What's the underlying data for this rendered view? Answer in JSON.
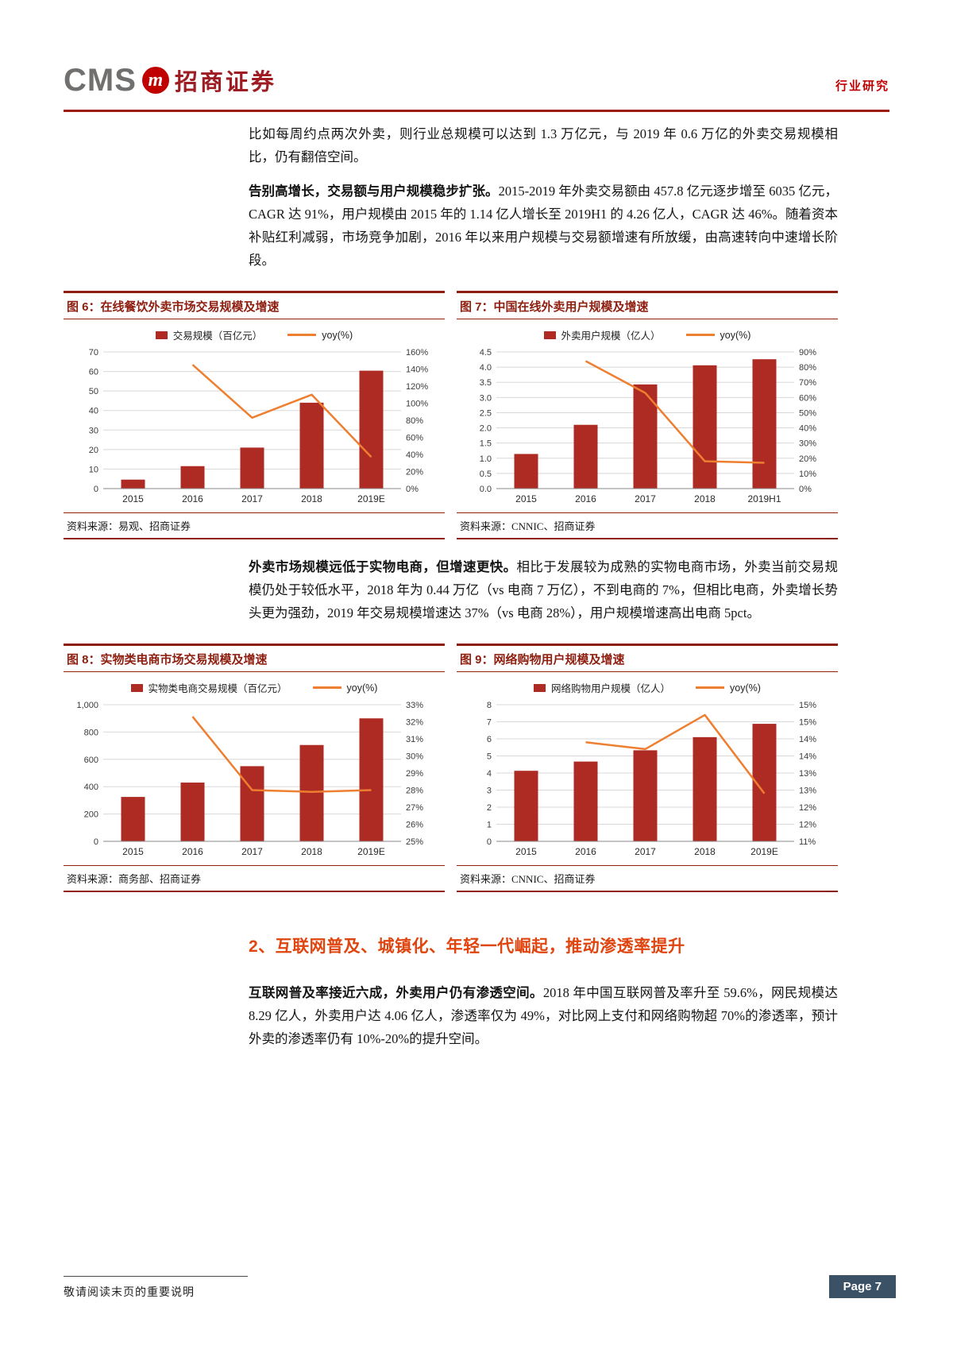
{
  "header": {
    "brand_cms": "CMS",
    "brand_m": "m",
    "brand_name": "招商证券",
    "section_label": "行业研究"
  },
  "paragraphs": {
    "p1": "比如每周约点两次外卖，则行业总规模可以达到 1.3 万亿元，与 2019 年 0.6 万亿的外卖交易规模相比，仍有翻倍空间。",
    "p2_lead": "告别高增长，交易额与用户规模稳步扩张。",
    "p2_rest": "2015-2019 年外卖交易额由 457.8 亿元逐步增至 6035 亿元，CAGR 达 91%，用户规模由 2015 年的 1.14 亿人增长至 2019H1 的 4.26 亿人，CAGR 达 46%。随着资本补贴红利减弱，市场竞争加剧，2016 年以来用户规模与交易额增速有所放缓，由高速转向中速增长阶段。",
    "p3_lead": "外卖市场规模远低于实物电商，但增速更快。",
    "p3_rest": "相比于发展较为成熟的实物电商市场，外卖当前交易规模仍处于较低水平，2018 年为 0.44 万亿（vs 电商 7 万亿），不到电商的 7%，但相比电商，外卖增长势头更为强劲，2019 年交易规模增速达 37%（vs 电商 28%），用户规模增速高出电商 5pct。",
    "p4_lead": "互联网普及率接近六成，外卖用户仍有渗透空间。",
    "p4_rest": "2018 年中国互联网普及率升至 59.6%，网民规模达 8.29 亿人，外卖用户达 4.06 亿人，渗透率仅为 49%，对比网上支付和网络购物超 70%的渗透率，预计外卖的渗透率仍有 10%-20%的提升空间。"
  },
  "section_heading": "2、互联网普及、城镇化、年轻一代崛起，推动渗透率提升",
  "footer": {
    "note": "敬请阅读末页的重要说明",
    "page_label": "Page 7"
  },
  "colors": {
    "bar": "#AE2B24",
    "line": "#EE7E30",
    "line_red": "#8E1F10",
    "rule_red": "#9E1C16",
    "accent_red": "#C00000",
    "brand_red": "#9D1D22",
    "brand_gray": "#71706E",
    "heading_orange": "#E0450F",
    "badge_bg": "#3A5166"
  },
  "chart_data": "see charts",
  "charts": [
    {
      "fig_label": "图 6：在线餐饮外卖市场交易规模及增速",
      "type": "bar+line",
      "categories": [
        "2015",
        "2016",
        "2017",
        "2018",
        "2019E"
      ],
      "series": [
        {
          "name": "交易规模（百亿元）",
          "type": "bar",
          "axis": "left",
          "values": [
            4.6,
            11.5,
            21,
            44,
            60.4
          ]
        },
        {
          "name": "yoy(%)",
          "type": "line",
          "axis": "right",
          "values": [
            null,
            145,
            83,
            110,
            37
          ]
        }
      ],
      "left_axis": {
        "min": 0,
        "max": 70,
        "tick_values": [
          0,
          10,
          20,
          30,
          40,
          50,
          60,
          70
        ],
        "tick_labels": [
          "0",
          "10",
          "20",
          "30",
          "40",
          "50",
          "60",
          "70"
        ]
      },
      "right_axis": {
        "min": 0,
        "max": 160,
        "tick_values": [
          0,
          20,
          40,
          60,
          80,
          100,
          120,
          140,
          160
        ],
        "tick_labels": [
          "0%",
          "20%",
          "40%",
          "60%",
          "80%",
          "100%",
          "120%",
          "140%",
          "160%"
        ]
      },
      "source": "资料来源：易观、招商证券"
    },
    {
      "fig_label": "图 7：中国在线外卖用户规模及增速",
      "type": "bar+line",
      "categories": [
        "2015",
        "2016",
        "2017",
        "2018",
        "2019H1"
      ],
      "series": [
        {
          "name": "外卖用户规模（亿人）",
          "type": "bar",
          "axis": "left",
          "values": [
            1.14,
            2.1,
            3.43,
            4.06,
            4.26
          ]
        },
        {
          "name": "yoy(%)",
          "type": "line",
          "axis": "right",
          "values": [
            null,
            84,
            63,
            18,
            17
          ]
        }
      ],
      "left_axis": {
        "min": 0,
        "max": 4.5,
        "tick_values": [
          0,
          0.5,
          1,
          1.5,
          2,
          2.5,
          3,
          3.5,
          4,
          4.5
        ],
        "tick_labels": [
          "0.0",
          "0.5",
          "1.0",
          "1.5",
          "2.0",
          "2.5",
          "3.0",
          "3.5",
          "4.0",
          "4.5"
        ]
      },
      "right_axis": {
        "min": 0,
        "max": 90,
        "tick_values": [
          0,
          10,
          20,
          30,
          40,
          50,
          60,
          70,
          80,
          90
        ],
        "tick_labels": [
          "0%",
          "10%",
          "20%",
          "30%",
          "40%",
          "50%",
          "60%",
          "70%",
          "80%",
          "90%"
        ]
      },
      "source": "资料来源：CNNIC、招商证券"
    },
    {
      "fig_label": "图 8：实物类电商市场交易规模及增速",
      "type": "bar+line",
      "categories": [
        "2015",
        "2016",
        "2017",
        "2018",
        "2019E"
      ],
      "series": [
        {
          "name": "实物类电商交易规模（百亿元）",
          "type": "bar",
          "axis": "left",
          "values": [
            325,
            430,
            550,
            705,
            900
          ]
        },
        {
          "name": "yoy(%)",
          "type": "line",
          "axis": "right",
          "values": [
            null,
            32.3,
            28,
            27.9,
            28
          ]
        }
      ],
      "left_axis": {
        "min": 0,
        "max": 1000,
        "tick_values": [
          0,
          200,
          400,
          600,
          800,
          1000
        ],
        "tick_labels": [
          "0",
          "200",
          "400",
          "600",
          "800",
          "1,000"
        ]
      },
      "right_axis": {
        "min": 25,
        "max": 33,
        "tick_values": [
          25,
          26,
          27,
          28,
          29,
          30,
          31,
          32,
          33
        ],
        "tick_labels": [
          "25%",
          "26%",
          "27%",
          "28%",
          "29%",
          "30%",
          "31%",
          "32%",
          "33%"
        ]
      },
      "source": "资料来源：商务部、招商证券"
    },
    {
      "fig_label": "图 9：网络购物用户规模及增速",
      "type": "bar+line",
      "categories": [
        "2015",
        "2016",
        "2017",
        "2018",
        "2019E"
      ],
      "series": [
        {
          "name": "网络购物用户规模（亿人）",
          "type": "bar",
          "axis": "left",
          "values": [
            4.13,
            4.67,
            5.33,
            6.1,
            6.88
          ]
        },
        {
          "name": "yoy(%)",
          "type": "line",
          "axis": "right",
          "values": [
            null,
            13.9,
            13.7,
            14.7,
            12.4
          ]
        }
      ],
      "left_axis": {
        "min": 0,
        "max": 8,
        "tick_values": [
          0,
          1,
          2,
          3,
          4,
          5,
          6,
          7,
          8
        ],
        "tick_labels": [
          "0",
          "1",
          "2",
          "3",
          "4",
          "5",
          "6",
          "7",
          "8"
        ]
      },
      "right_axis": {
        "min": 11,
        "max": 15,
        "tick_values": [
          11,
          11.5,
          12,
          12.5,
          13,
          13.5,
          14,
          14.5,
          15
        ],
        "tick_labels": [
          "11%",
          "12%",
          "12%",
          "13%",
          "13%",
          "14%",
          "14%",
          "15%",
          "15%"
        ]
      },
      "source": "资料来源：CNNIC、招商证券"
    }
  ]
}
